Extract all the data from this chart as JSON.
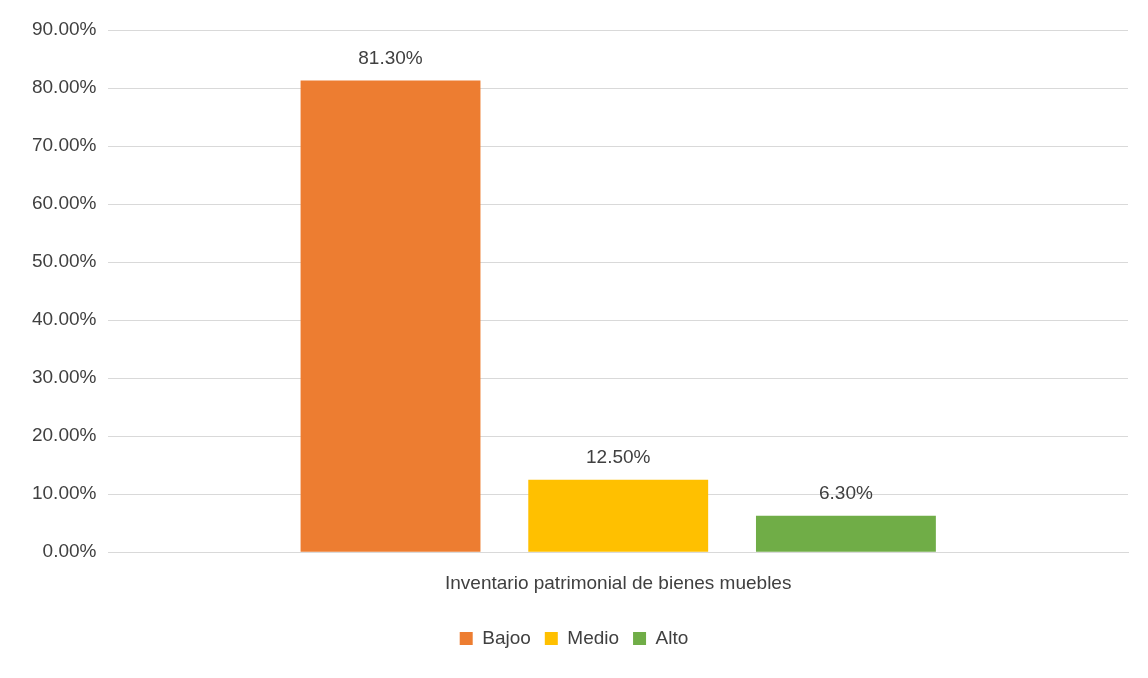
{
  "chart_data": {
    "type": "bar",
    "categories": [
      "Inventario patrimonial de bienes muebles"
    ],
    "series": [
      {
        "name": "Bajoo",
        "color": "#ed7d31",
        "values": [
          81.3
        ],
        "value_labels": [
          "81.30%"
        ]
      },
      {
        "name": "Medio",
        "color": "#ffc000",
        "values": [
          12.5
        ],
        "value_labels": [
          "12.50%"
        ]
      },
      {
        "name": "Alto",
        "color": "#70ad47",
        "values": [
          6.3
        ],
        "value_labels": [
          "6.30%"
        ]
      }
    ],
    "ylim": [
      0,
      90
    ],
    "yticks": [
      {
        "value": 0,
        "label": "0.00%"
      },
      {
        "value": 10,
        "label": "10.00%"
      },
      {
        "value": 20,
        "label": "20.00%"
      },
      {
        "value": 30,
        "label": "30.00%"
      },
      {
        "value": 40,
        "label": "40.00%"
      },
      {
        "value": 50,
        "label": "50.00%"
      },
      {
        "value": 60,
        "label": "60.00%"
      },
      {
        "value": 70,
        "label": "70.00%"
      },
      {
        "value": 80,
        "label": "80.00%"
      },
      {
        "value": 90,
        "label": "90.00%"
      }
    ],
    "grid": "y",
    "legend": "bottom"
  }
}
